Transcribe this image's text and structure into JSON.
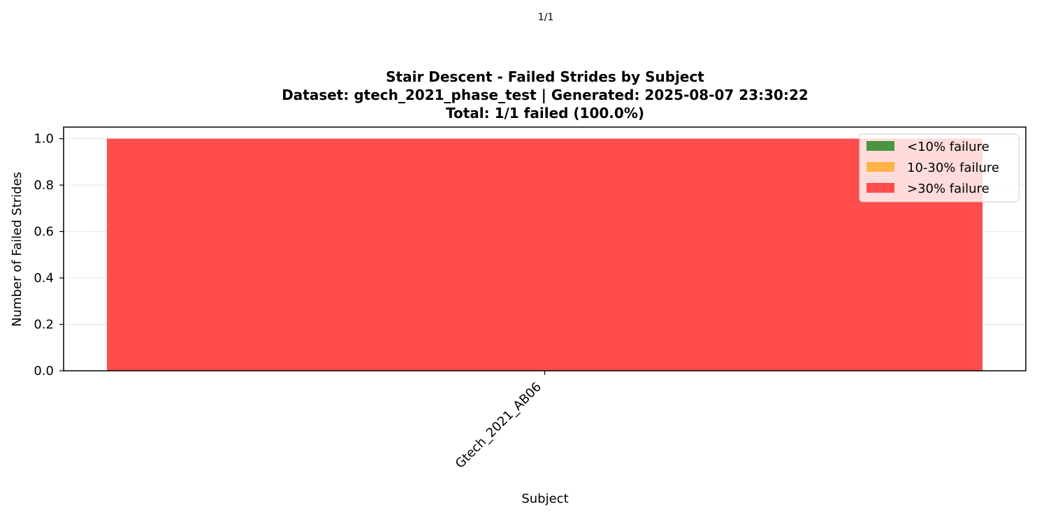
{
  "page_counter": "1/1",
  "chart_data": {
    "type": "bar",
    "title_lines": [
      "Stair Descent - Failed Strides by Subject",
      "Dataset: gtech_2021_phase_test | Generated: 2025-08-07 23:30:22",
      "Total: 1/1 failed (100.0%)"
    ],
    "xlabel": "Subject",
    "ylabel": "Number of Failed Strides",
    "categories": [
      "Gtech_2021_AB06"
    ],
    "values": [
      1
    ],
    "bar_color": "#ff4c4c",
    "ylim": [
      0,
      1.05
    ],
    "yticks": [
      "0.0",
      "0.2",
      "0.4",
      "0.6",
      "0.8",
      "1.0"
    ],
    "grid": "y",
    "legend_position": "top-right",
    "legend": [
      {
        "label": "<10% failure",
        "color": "#4a9540"
      },
      {
        "label": "10-30% failure",
        "color": "#ffb347"
      },
      {
        "label": ">30% failure",
        "color": "#ff4c4c"
      }
    ]
  }
}
